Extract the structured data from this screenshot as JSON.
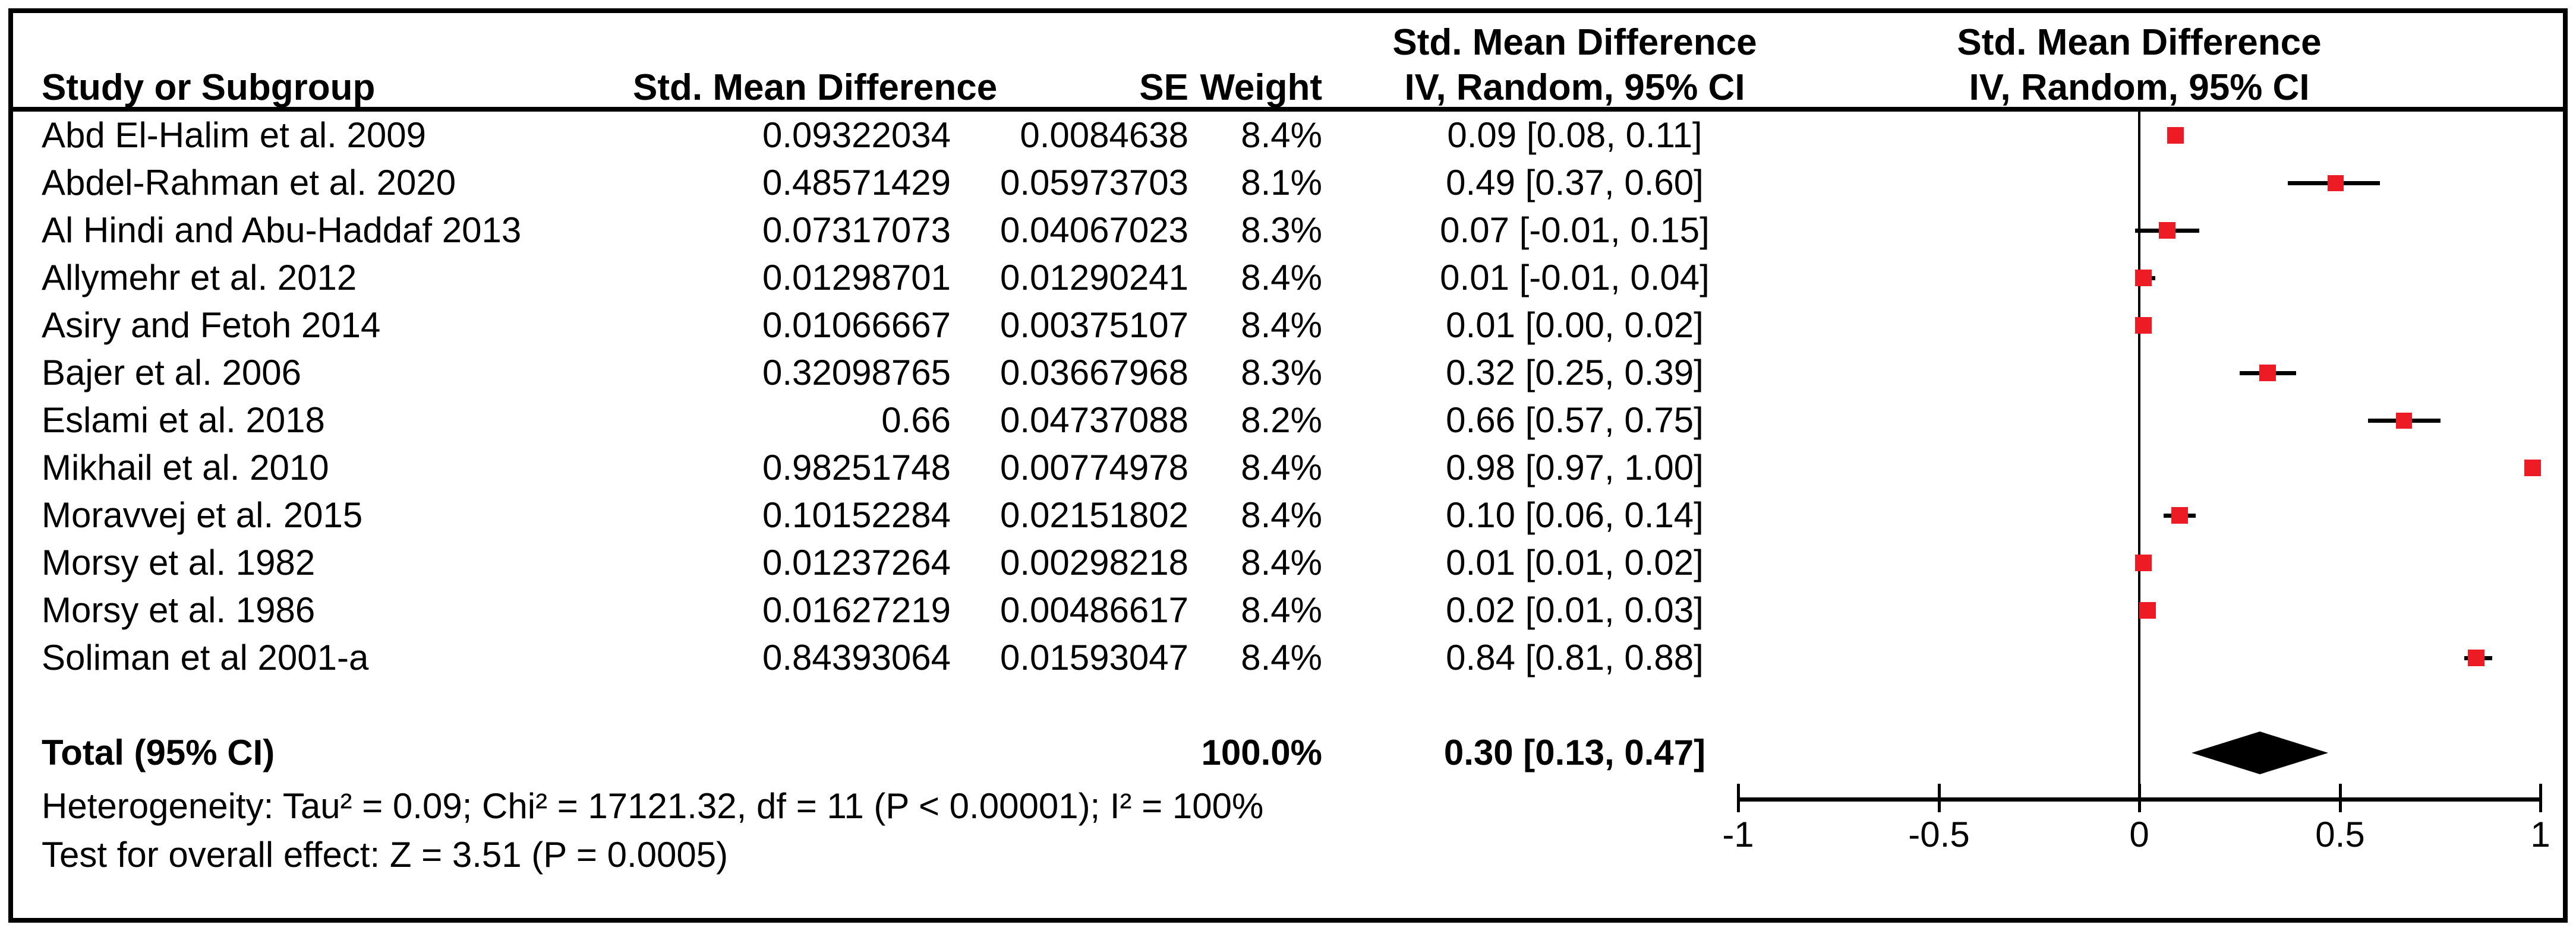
{
  "headers": {
    "study": "Study or Subgroup",
    "smd": "Std. Mean Difference",
    "se": "SE",
    "weight": "Weight",
    "effect_col_line1": "Std. Mean Difference",
    "effect_col_line2": "IV, Random, 95% CI",
    "plot_col_line1": "Std. Mean Difference",
    "plot_col_line2": "IV, Random, 95% CI"
  },
  "chart_data": {
    "type": "scatter",
    "subtype": "forest-plot-meta-analysis",
    "effect_measure": "Std. Mean Difference",
    "model": "IV, Random, 95% CI",
    "grid": false,
    "x_axis": {
      "range": [
        -1,
        1
      ],
      "tick_values": [
        -1,
        -0.5,
        0,
        0.5,
        1
      ],
      "tick_labels": [
        "-1",
        "-0.5",
        "0",
        "0.5",
        "1"
      ]
    },
    "marker_color": "#ed1c24",
    "line_color": "#000000",
    "diamond_color": "#000000",
    "studies": [
      {
        "name": "Abd El-Halim et al. 2009",
        "smd": "0.09322034",
        "se": "0.0084638",
        "weight": "8.4%",
        "ci_text": "0.09 [0.08, 0.11]",
        "est": 0.09,
        "lo": 0.08,
        "hi": 0.11
      },
      {
        "name": "Abdel-Rahman et al. 2020",
        "smd": "0.48571429",
        "se": "0.05973703",
        "weight": "8.1%",
        "ci_text": "0.49 [0.37, 0.60]",
        "est": 0.49,
        "lo": 0.37,
        "hi": 0.6
      },
      {
        "name": "Al Hindi and Abu-Haddaf 2013",
        "smd": "0.07317073",
        "se": "0.04067023",
        "weight": "8.3%",
        "ci_text": "0.07 [-0.01, 0.15]",
        "est": 0.07,
        "lo": -0.01,
        "hi": 0.15
      },
      {
        "name": "Allymehr et al. 2012",
        "smd": "0.01298701",
        "se": "0.01290241",
        "weight": "8.4%",
        "ci_text": "0.01 [-0.01, 0.04]",
        "est": 0.01,
        "lo": -0.01,
        "hi": 0.04
      },
      {
        "name": "Asiry and Fetoh 2014",
        "smd": "0.01066667",
        "se": "0.00375107",
        "weight": "8.4%",
        "ci_text": "0.01 [0.00, 0.02]",
        "est": 0.01,
        "lo": 0.0,
        "hi": 0.02
      },
      {
        "name": "Bajer et al. 2006",
        "smd": "0.32098765",
        "se": "0.03667968",
        "weight": "8.3%",
        "ci_text": "0.32 [0.25, 0.39]",
        "est": 0.32,
        "lo": 0.25,
        "hi": 0.39
      },
      {
        "name": "Eslami et al. 2018",
        "smd": "0.66",
        "se": "0.04737088",
        "weight": "8.2%",
        "ci_text": "0.66 [0.57, 0.75]",
        "est": 0.66,
        "lo": 0.57,
        "hi": 0.75
      },
      {
        "name": "Mikhail et al. 2010",
        "smd": "0.98251748",
        "se": "0.00774978",
        "weight": "8.4%",
        "ci_text": "0.98 [0.97, 1.00]",
        "est": 0.98,
        "lo": 0.97,
        "hi": 1.0
      },
      {
        "name": "Moravvej et al. 2015",
        "smd": "0.10152284",
        "se": "0.02151802",
        "weight": "8.4%",
        "ci_text": "0.10 [0.06, 0.14]",
        "est": 0.1,
        "lo": 0.06,
        "hi": 0.14
      },
      {
        "name": "Morsy et al. 1982",
        "smd": "0.01237264",
        "se": "0.00298218",
        "weight": "8.4%",
        "ci_text": "0.01 [0.01, 0.02]",
        "est": 0.01,
        "lo": 0.01,
        "hi": 0.02
      },
      {
        "name": "Morsy et al. 1986",
        "smd": "0.01627219",
        "se": "0.00486617",
        "weight": "8.4%",
        "ci_text": "0.02 [0.01, 0.03]",
        "est": 0.02,
        "lo": 0.01,
        "hi": 0.03
      },
      {
        "name": "Soliman et al 2001-a",
        "smd": "0.84393064",
        "se": "0.01593047",
        "weight": "8.4%",
        "ci_text": "0.84 [0.81, 0.88]",
        "est": 0.84,
        "lo": 0.81,
        "hi": 0.88
      }
    ],
    "total": {
      "label": "Total (95% CI)",
      "weight": "100.0%",
      "ci_text": "0.30 [0.13, 0.47]",
      "est": 0.3,
      "lo": 0.13,
      "hi": 0.47
    },
    "footnotes": {
      "heterogeneity": "Heterogeneity: Tau² = 0.09; Chi² = 17121.32, df = 11 (P < 0.00001); I² = 100%",
      "overall_effect": "Test for overall effect: Z = 3.51 (P = 0.0005)"
    }
  }
}
